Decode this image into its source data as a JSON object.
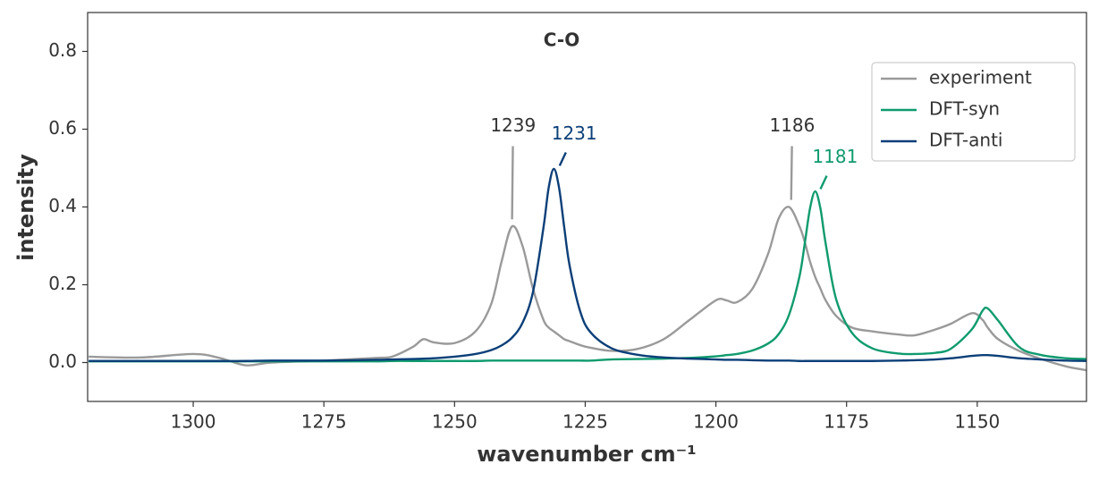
{
  "chart_data": {
    "type": "line",
    "title": "C-O",
    "x_label": "wavenumber cm⁻¹",
    "y_label": "intensity",
    "xlim": [
      1320.2,
      1129.1
    ],
    "ylim": [
      -0.1,
      0.9
    ],
    "xticks": [
      1300,
      1275,
      1250,
      1225,
      1200,
      1175,
      1150
    ],
    "yticks": [
      {
        "value": 0,
        "label": "0.0"
      },
      0.2,
      0.4,
      0.6,
      0.8
    ],
    "grid": false,
    "legend": "upper right",
    "x": [
      1320,
      1310,
      1300,
      1295,
      1290,
      1285,
      1275,
      1265,
      1262,
      1258,
      1256,
      1254,
      1250,
      1246,
      1243,
      1241,
      1239,
      1237,
      1235,
      1233,
      1232,
      1231,
      1230,
      1229,
      1228,
      1226,
      1224,
      1220,
      1215,
      1210,
      1205,
      1200,
      1198,
      1196,
      1193,
      1190,
      1188,
      1186,
      1184,
      1183,
      1182,
      1181,
      1180,
      1179,
      1177,
      1174,
      1170,
      1165,
      1162,
      1158,
      1155,
      1151,
      1149,
      1148,
      1146,
      1142,
      1138,
      1133,
      1129
    ],
    "series": [
      {
        "name": "experiment",
        "color": "#9a9a9a",
        "values": [
          0.015,
          0.013,
          0.022,
          0.012,
          -0.007,
          0.0,
          0.005,
          0.012,
          0.015,
          0.04,
          0.06,
          0.052,
          0.05,
          0.08,
          0.15,
          0.26,
          0.35,
          0.3,
          0.19,
          0.11,
          0.09,
          0.08,
          0.07,
          0.06,
          0.055,
          0.045,
          0.038,
          0.03,
          0.035,
          0.06,
          0.11,
          0.16,
          0.16,
          0.155,
          0.19,
          0.28,
          0.37,
          0.4,
          0.35,
          0.31,
          0.26,
          0.22,
          0.19,
          0.16,
          0.12,
          0.09,
          0.08,
          0.072,
          0.07,
          0.085,
          0.1,
          0.127,
          0.11,
          0.09,
          0.06,
          0.03,
          0.01,
          -0.01,
          -0.02
        ]
      },
      {
        "name": "DFT-syn",
        "color": "#0f9b6e",
        "values": [
          0.003,
          0.003,
          0.003,
          0.003,
          0.003,
          0.003,
          0.003,
          0.003,
          0.004,
          0.004,
          0.004,
          0.004,
          0.004,
          0.004,
          0.005,
          0.005,
          0.005,
          0.005,
          0.005,
          0.005,
          0.005,
          0.005,
          0.005,
          0.005,
          0.005,
          0.005,
          0.005,
          0.008,
          0.009,
          0.01,
          0.012,
          0.016,
          0.019,
          0.022,
          0.031,
          0.049,
          0.073,
          0.123,
          0.222,
          0.306,
          0.396,
          0.44,
          0.396,
          0.306,
          0.163,
          0.077,
          0.036,
          0.023,
          0.022,
          0.025,
          0.036,
          0.086,
          0.133,
          0.139,
          0.108,
          0.04,
          0.02,
          0.011,
          0.009
        ]
      },
      {
        "name": "DFT-anti",
        "color": "#0b3f78",
        "values": [
          0.004,
          0.004,
          0.004,
          0.004,
          0.004,
          0.005,
          0.005,
          0.007,
          0.008,
          0.009,
          0.01,
          0.011,
          0.015,
          0.022,
          0.032,
          0.044,
          0.064,
          0.102,
          0.181,
          0.346,
          0.449,
          0.498,
          0.449,
          0.346,
          0.25,
          0.133,
          0.078,
          0.037,
          0.02,
          0.013,
          0.01,
          0.008,
          0.007,
          0.007,
          0.006,
          0.005,
          0.005,
          0.005,
          0.004,
          0.004,
          0.004,
          0.004,
          0.004,
          0.004,
          0.004,
          0.004,
          0.004,
          0.005,
          0.006,
          0.008,
          0.011,
          0.017,
          0.019,
          0.019,
          0.017,
          0.011,
          0.008,
          0.005,
          0.004
        ]
      }
    ],
    "annotations": [
      {
        "text": "1239",
        "xy": [
          1239,
          0.368
        ],
        "xytext": [
          1238.8,
          0.607
        ],
        "color": "#333333",
        "line_color": "#9a9a9a"
      },
      {
        "text": "1231",
        "xy": [
          1229.9,
          0.506
        ],
        "xytext": [
          1227.1,
          0.586
        ],
        "color": "#0b3f78",
        "line_color": "#0b3f78"
      },
      {
        "text": "1186",
        "xy": [
          1185.6,
          0.418
        ],
        "xytext": [
          1185.4,
          0.607
        ],
        "color": "#333333",
        "line_color": "#9a9a9a"
      },
      {
        "text": "1181",
        "xy": [
          1180.0,
          0.446
        ],
        "xytext": [
          1177.2,
          0.526
        ],
        "color": "#0f9b6e",
        "line_color": "#0f9b6e"
      }
    ]
  }
}
